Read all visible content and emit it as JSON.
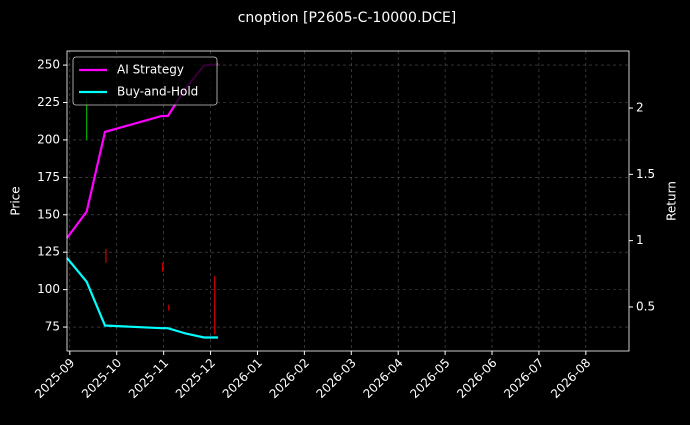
{
  "chart_data": {
    "type": "line",
    "title": "cnoption [P2605-C-10000.DCE]",
    "y_label": "Price",
    "y2_label": "Return",
    "x": [
      -0.06,
      0.36,
      0.75,
      1.96,
      2.09,
      2.47,
      2.86,
      3.16
    ],
    "series": [
      {
        "name": "AI Strategy",
        "color": "#ff00ff",
        "axis": "y2",
        "values": [
          1.02,
          1.22,
          1.82,
          1.94,
          1.94,
          2.15,
          2.32,
          2.33
        ]
      },
      {
        "name": "Buy-and-Hold",
        "color": "#00ffff",
        "axis": "y2",
        "values": [
          0.87,
          0.69,
          0.36,
          0.34,
          0.34,
          0.3,
          0.27,
          0.27
        ]
      }
    ],
    "candles": {
      "x": [
        0.36,
        0.77,
        1.98,
        2.11,
        3.09
      ],
      "high": [
        228,
        127,
        118,
        90,
        109
      ],
      "low": [
        200,
        118,
        112,
        86,
        70
      ],
      "colors": [
        "#00cc00",
        "#ff0000",
        "#ff0000",
        "#ff0000",
        "#ff0000"
      ]
    },
    "xlim": [
      -0.06,
      11.92
    ],
    "xticks": [
      {
        "value": 0,
        "label": "2025-09"
      },
      {
        "value": 1,
        "label": "2025-10"
      },
      {
        "value": 2,
        "label": "2025-11"
      },
      {
        "value": 3,
        "label": "2025-12"
      },
      {
        "value": 4,
        "label": "2026-01"
      },
      {
        "value": 5,
        "label": "2026-02"
      },
      {
        "value": 6,
        "label": "2026-03"
      },
      {
        "value": 7,
        "label": "2026-04"
      },
      {
        "value": 8,
        "label": "2026-05"
      },
      {
        "value": 9,
        "label": "2026-06"
      },
      {
        "value": 10,
        "label": "2026-07"
      },
      {
        "value": 11,
        "label": "2026-08"
      }
    ],
    "ylim": [
      59,
      259.4
    ],
    "yticks": [
      75,
      100,
      125,
      150,
      175,
      200,
      225,
      250
    ],
    "y2lim": [
      0.168,
      2.43
    ],
    "y2ticks": [
      0.5,
      1.0,
      1.5,
      2.0
    ],
    "grid": true,
    "legend": "upper left"
  }
}
